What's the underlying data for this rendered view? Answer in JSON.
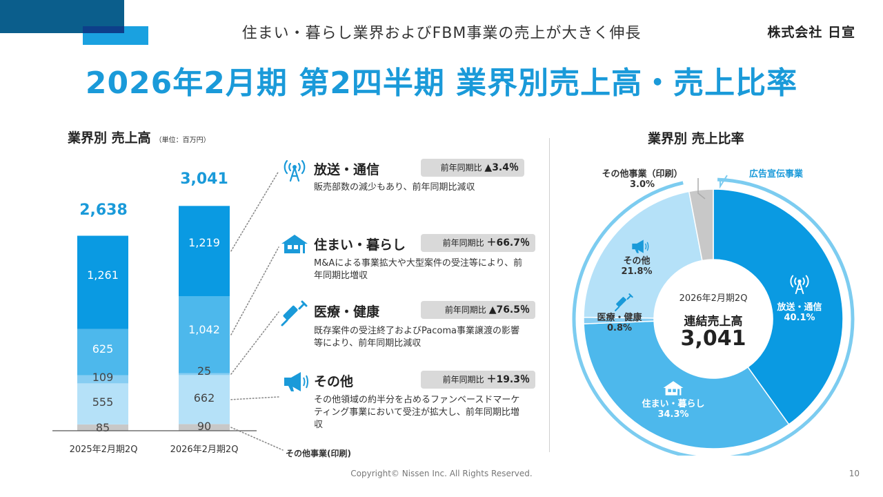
{
  "header": {
    "subtitle": "住まい・暮らし業界およびFBM事業の売上が大きく伸長",
    "company": "株式会社 日宣",
    "title": "2026年2月期 第2四半期 業界別売上高・売上比率"
  },
  "bar_section": {
    "title": "業界別 売上高",
    "unit": "（単位：百万円）",
    "other_label": "その他事業(印刷)"
  },
  "pie_section": {
    "title": "業界別 売上比率",
    "center_period": "2026年2月期2Q",
    "center_title": "連結売上高",
    "center_value": "3,041",
    "labels": {
      "broadcast_name": "放送・通信",
      "broadcast_pct": "40.1%",
      "housing_name": "住まい・暮らし",
      "housing_pct": "34.3%",
      "medical_name": "医療・健康",
      "medical_pct": "0.8%",
      "other_name": "その他",
      "other_pct": "21.8%",
      "print_name": "その他事業（印刷）",
      "print_pct": "3.0%",
      "ad_name": "広告宣伝事業"
    }
  },
  "categories": [
    {
      "name": "放送・通信",
      "yoy_label": "前年同期比",
      "yoy_value": "▲3.4％",
      "desc": "販売部数の減少もあり、前年同期比減収"
    },
    {
      "name": "住まい・暮らし",
      "yoy_label": "前年同期比",
      "yoy_value": "＋66.7％",
      "desc": "M&Aによる事業拡大や大型案件の受注等により、前年同期比増収"
    },
    {
      "name": "医療・健康",
      "yoy_label": "前年同期比",
      "yoy_value": "▲76.5％",
      "desc": "既存案件の受注終了およびPacoma事業譲渡の影響等により、前年同期比減収"
    },
    {
      "name": "その他",
      "yoy_label": "前年同期比",
      "yoy_value": "＋19.3％",
      "desc": "その他領域の約半分を占めるファンベースドマーケティング事業において受注が拡大し、前年同期比増収"
    }
  ],
  "colors": {
    "broadcast": "#0a9ae2",
    "housing": "#4db8ec",
    "medical": "#87cdf2",
    "other": "#b5e1f8",
    "print": "#c8c8c8",
    "title": "#1a9ad9"
  },
  "chart_data": [
    {
      "type": "bar",
      "stacked": true,
      "title": "業界別 売上高",
      "unit": "百万円",
      "categories": [
        "2025年2月期2Q",
        "2026年2月期2Q"
      ],
      "totals": [
        "2,638",
        "3,041"
      ],
      "series": [
        {
          "name": "その他事業(印刷)",
          "values": [
            85,
            90
          ],
          "labels": [
            "85",
            "90"
          ]
        },
        {
          "name": "その他",
          "values": [
            555,
            662
          ],
          "labels": [
            "555",
            "662"
          ]
        },
        {
          "name": "医療・健康",
          "values": [
            109,
            25
          ],
          "labels": [
            "109",
            "25"
          ]
        },
        {
          "name": "住まい・暮らし",
          "values": [
            625,
            1042
          ],
          "labels": [
            "625",
            "1,042"
          ]
        },
        {
          "name": "放送・通信",
          "values": [
            1261,
            1219
          ],
          "labels": [
            "1,261",
            "1,219"
          ]
        }
      ]
    },
    {
      "type": "pie",
      "donut": true,
      "title": "業界別 売上比率",
      "slices": [
        {
          "name": "放送・通信",
          "value": 40.1
        },
        {
          "name": "住まい・暮らし",
          "value": 34.3
        },
        {
          "name": "医療・健康",
          "value": 0.8
        },
        {
          "name": "その他",
          "value": 21.8
        },
        {
          "name": "その他事業（印刷）",
          "value": 3.0
        }
      ]
    }
  ],
  "footer": {
    "copyright": "Copyright© Nissen Inc. All Rights Reserved.",
    "page": "10"
  }
}
